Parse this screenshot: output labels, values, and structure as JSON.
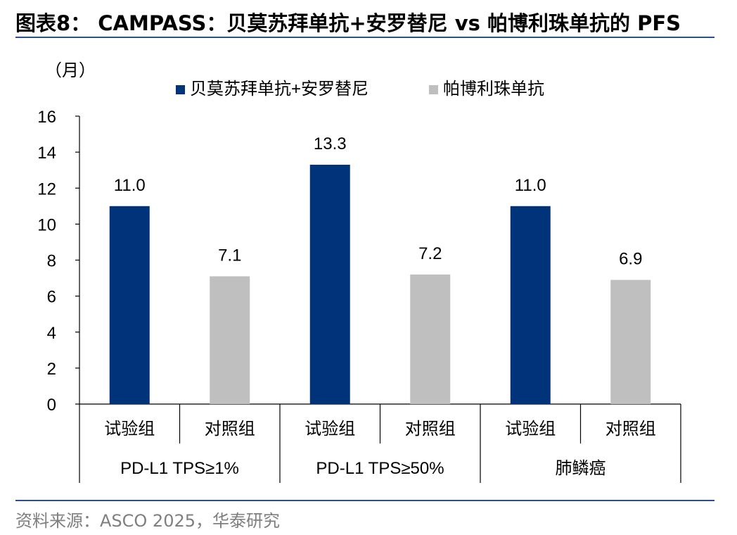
{
  "header": {
    "title": "图表8： CAMPASS：贝莫苏拜单抗+安罗替尼 vs 帕博利珠单抗的 PFS"
  },
  "footer": {
    "source": "资料来源：ASCO 2025，华泰研究"
  },
  "colors": {
    "experimental": "#00337A",
    "control": "#BFBFBF",
    "rule": "#2F4F8F"
  },
  "chart_data": {
    "type": "bar",
    "unit_label": "（月）",
    "ylim": [
      0,
      16
    ],
    "yticks": [
      0,
      2,
      4,
      6,
      8,
      10,
      12,
      14,
      16
    ],
    "grid": false,
    "legend_position": "top",
    "legend": [
      {
        "name": "贝莫苏拜单抗+安罗替尼",
        "color": "#00337A"
      },
      {
        "name": "帕博利珠单抗",
        "color": "#BFBFBF"
      }
    ],
    "groups": [
      {
        "label": "PD-L1 TPS≥1%",
        "bars": [
          {
            "category": "试验组",
            "value": 11.0,
            "label": "11.0",
            "series": 0
          },
          {
            "category": "对照组",
            "value": 7.1,
            "label": "7.1",
            "series": 1
          }
        ]
      },
      {
        "label": "PD-L1 TPS≥50%",
        "bars": [
          {
            "category": "试验组",
            "value": 13.3,
            "label": "13.3",
            "series": 0
          },
          {
            "category": "对照组",
            "value": 7.2,
            "label": "7.2",
            "series": 1
          }
        ]
      },
      {
        "label": "肺鳞癌",
        "bars": [
          {
            "category": "试验组",
            "value": 11.0,
            "label": "11.0",
            "series": 0
          },
          {
            "category": "对照组",
            "value": 6.9,
            "label": "6.9",
            "series": 1
          }
        ]
      }
    ]
  }
}
